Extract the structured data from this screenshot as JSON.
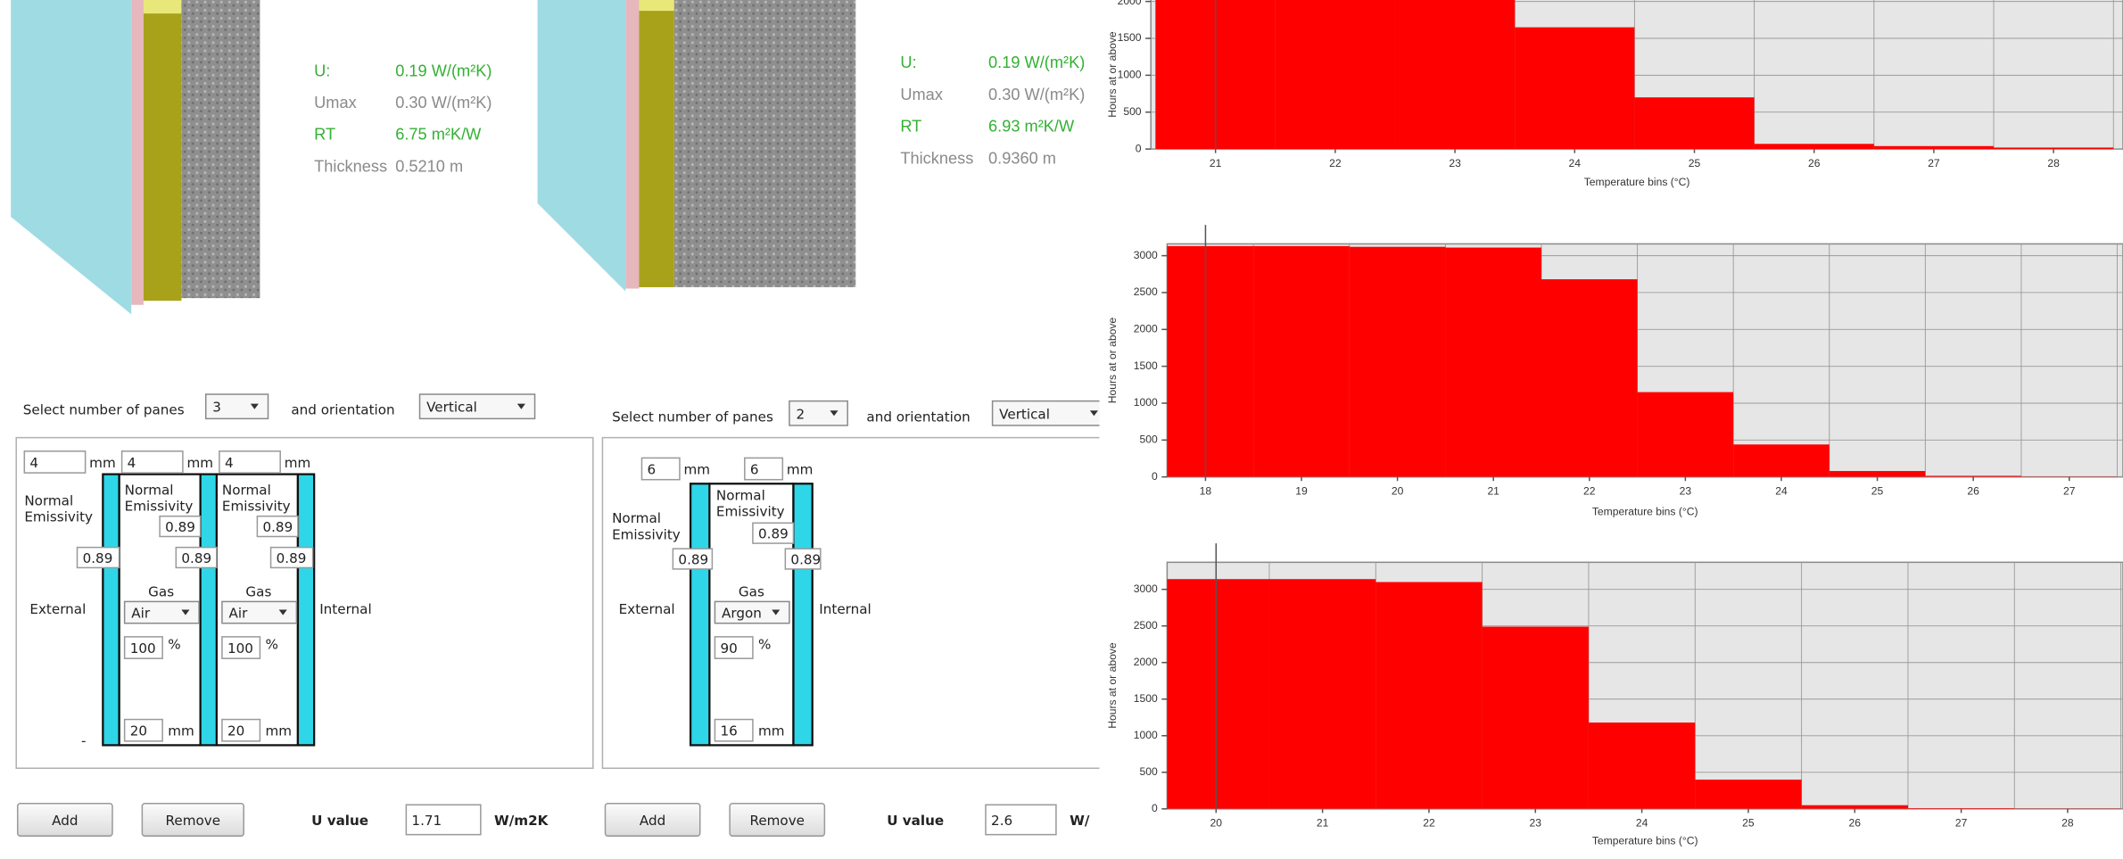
{
  "walls": [
    {
      "rows": [
        {
          "label": "U:",
          "value": "0.19 W/(m²K)"
        },
        {
          "label": "Umax",
          "value": "0.30 W/(m²K)"
        },
        {
          "label": "RT",
          "value": "6.75 m²K/W"
        },
        {
          "label": "Thickness",
          "value": "0.5210 m"
        }
      ]
    },
    {
      "rows": [
        {
          "label": "U:",
          "value": "0.19 W/(m²K)"
        },
        {
          "label": "Umax",
          "value": "0.30 W/(m²K)"
        },
        {
          "label": "RT",
          "value": "6.93 m²K/W"
        },
        {
          "label": "Thickness",
          "value": "0.9360 m"
        }
      ]
    }
  ],
  "glazing": [
    {
      "panes_label": "Select number of panes",
      "panes": "3",
      "orientation_label": "and orientation",
      "orientation": "Vertical",
      "pane_thickness": [
        "4",
        "4",
        "4"
      ],
      "unit": "mm",
      "emissivity_label": [
        "Normal",
        "Emissivity"
      ],
      "emissivity": [
        "0.89",
        "0.89",
        "0.89",
        "0.89",
        "0.89"
      ],
      "external": "External",
      "internal": "Internal",
      "gaps": [
        {
          "gas_label": "Gas",
          "gas": "Air",
          "percent": "100",
          "percent_unit": "%",
          "width": "20"
        },
        {
          "gas_label": "Gas",
          "gas": "Air",
          "percent": "100",
          "percent_unit": "%",
          "width": "20"
        }
      ],
      "dash": "-",
      "add": "Add",
      "remove": "Remove",
      "u_label": "U value",
      "u": "1.71",
      "u_unit": "W/m2K"
    },
    {
      "panes_label": "Select number of panes",
      "panes": "2",
      "orientation_label": "and orientation",
      "orientation": "Vertical",
      "pane_thickness": [
        "6",
        "6"
      ],
      "unit": "mm",
      "emissivity_label": [
        "Normal",
        "Emissivity"
      ],
      "emissivity": [
        "0.89",
        "0.89",
        "0.89"
      ],
      "external": "External",
      "internal": "Internal",
      "gaps": [
        {
          "gas_label": "Gas",
          "gas": "Argon",
          "percent": "90",
          "percent_unit": "%",
          "width": "16"
        }
      ],
      "add": "Add",
      "remove": "Remove",
      "u_label": "U value",
      "u": "2.6",
      "u_unit": "W/"
    }
  ],
  "chart_data": [
    {
      "type": "histogram",
      "y_label": "Hours at or above",
      "x_label": "Temperature bins (°C)",
      "color": "#ff0000",
      "grid": true,
      "bins": [
        20.5,
        21.5,
        22.5,
        23.5,
        24.5,
        25.5,
        26.5,
        27.5,
        28.5
      ],
      "counts": [
        3150,
        3150,
        3150,
        1650,
        700,
        70,
        40,
        20
      ],
      "marker": 21,
      "xlim": [
        20.46,
        28.58
      ],
      "ylim": [
        0,
        3250
      ],
      "xticks": [
        21,
        22,
        23,
        24,
        25,
        26,
        27,
        28
      ],
      "yticks": [
        0,
        500,
        1000,
        1500,
        2000
      ]
    },
    {
      "type": "histogram",
      "y_label": "Hours at or above",
      "x_label": "Temperature bins (°C)",
      "color": "#ff0000",
      "grid": true,
      "bins": [
        17.5,
        18.5,
        19.5,
        20.5,
        21.5,
        22.5,
        23.5,
        24.5,
        25.5,
        26.5,
        27.5
      ],
      "counts": [
        3130,
        3130,
        3120,
        3110,
        2680,
        1150,
        440,
        80,
        15,
        5
      ],
      "marker": 18,
      "xlim": [
        17.6,
        27.56
      ],
      "ylim": [
        0,
        3160
      ],
      "xticks": [
        18,
        19,
        20,
        21,
        22,
        23,
        24,
        25,
        26,
        27
      ],
      "yticks": [
        0,
        500,
        1000,
        1500,
        2000,
        2500,
        3000
      ]
    },
    {
      "type": "histogram",
      "y_label": "Hours at or above",
      "x_label": "Temperature bins (°C)",
      "color": "#ff0000",
      "grid": true,
      "bins": [
        19.5,
        20.5,
        21.5,
        22.5,
        23.5,
        24.5,
        25.5,
        26.5,
        27.5,
        28.5
      ],
      "counts": [
        3140,
        3140,
        3100,
        2490,
        1180,
        400,
        50,
        10,
        5
      ],
      "marker": 20,
      "xlim": [
        19.54,
        28.52
      ],
      "ylim": [
        0,
        3370
      ],
      "xticks": [
        20,
        21,
        22,
        23,
        24,
        25,
        26,
        27,
        28
      ],
      "yticks": [
        0,
        500,
        1000,
        1500,
        2000,
        2500,
        3000
      ]
    }
  ]
}
